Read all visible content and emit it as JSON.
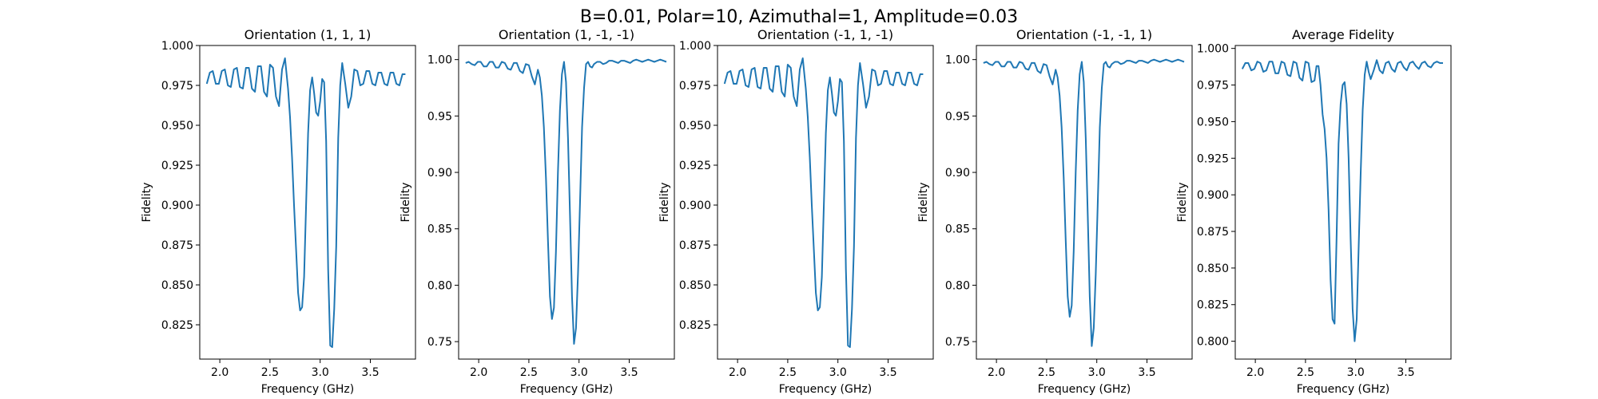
{
  "figure": {
    "suptitle": "B=0.01, Polar=10, Azimuthal=1, Amplitude=0.03"
  },
  "chart_data": [
    {
      "type": "line",
      "title": "Orientation (1, 1, 1)",
      "xlabel": "Frequency (GHz)",
      "ylabel": "Fidelity",
      "xlim": [
        1.8,
        3.95
      ],
      "ylim": [
        0.8035,
        1.0
      ],
      "xticks": [
        "2.0",
        "2.5",
        "3.0",
        "3.5"
      ],
      "yticks": [
        "0.825",
        "0.850",
        "0.875",
        "0.900",
        "0.925",
        "0.950",
        "0.975",
        "1.000"
      ],
      "color": "#1f77b4",
      "x": [
        1.87,
        1.9,
        1.93,
        1.96,
        1.99,
        2.02,
        2.05,
        2.08,
        2.11,
        2.14,
        2.17,
        2.2,
        2.23,
        2.26,
        2.29,
        2.32,
        2.35,
        2.38,
        2.41,
        2.44,
        2.47,
        2.5,
        2.53,
        2.56,
        2.59,
        2.62,
        2.65,
        2.68,
        2.7,
        2.72,
        2.74,
        2.76,
        2.78,
        2.8,
        2.82,
        2.84,
        2.86,
        2.88,
        2.9,
        2.92,
        2.94,
        2.96,
        2.98,
        3.0,
        3.02,
        3.04,
        3.06,
        3.08,
        3.1,
        3.12,
        3.14,
        3.16,
        3.18,
        3.2,
        3.22,
        3.25,
        3.28,
        3.31,
        3.34,
        3.37,
        3.4,
        3.43,
        3.46,
        3.49,
        3.52,
        3.55,
        3.58,
        3.61,
        3.64,
        3.67,
        3.7,
        3.73,
        3.76,
        3.79,
        3.82,
        3.85
      ],
      "y": [
        0.976,
        0.983,
        0.984,
        0.976,
        0.976,
        0.984,
        0.985,
        0.975,
        0.974,
        0.985,
        0.986,
        0.974,
        0.973,
        0.986,
        0.986,
        0.973,
        0.971,
        0.987,
        0.987,
        0.971,
        0.968,
        0.988,
        0.986,
        0.968,
        0.962,
        0.985,
        0.992,
        0.973,
        0.955,
        0.93,
        0.9,
        0.872,
        0.845,
        0.834,
        0.836,
        0.855,
        0.9,
        0.945,
        0.972,
        0.98,
        0.97,
        0.958,
        0.956,
        0.965,
        0.979,
        0.977,
        0.94,
        0.86,
        0.812,
        0.811,
        0.835,
        0.874,
        0.942,
        0.975,
        0.989,
        0.976,
        0.961,
        0.968,
        0.985,
        0.984,
        0.975,
        0.976,
        0.984,
        0.984,
        0.976,
        0.975,
        0.983,
        0.983,
        0.976,
        0.975,
        0.983,
        0.983,
        0.976,
        0.975,
        0.982,
        0.982
      ]
    },
    {
      "type": "line",
      "title": "Orientation (1, -1, -1)",
      "xlabel": "Frequency (GHz)",
      "ylabel": "Fidelity",
      "xlim": [
        1.8,
        3.95
      ],
      "ylim": [
        0.7345,
        1.0125
      ],
      "xticks": [
        "2.0",
        "2.5",
        "3.0",
        "3.5"
      ],
      "yticks": [
        "0.75",
        "0.80",
        "0.85",
        "0.90",
        "0.95",
        "1.00"
      ],
      "color": "#1f77b4",
      "x": [
        1.87,
        1.9,
        1.93,
        1.96,
        1.99,
        2.02,
        2.05,
        2.08,
        2.11,
        2.14,
        2.17,
        2.2,
        2.23,
        2.26,
        2.29,
        2.32,
        2.35,
        2.38,
        2.41,
        2.44,
        2.47,
        2.5,
        2.53,
        2.56,
        2.59,
        2.61,
        2.63,
        2.65,
        2.67,
        2.69,
        2.71,
        2.73,
        2.75,
        2.77,
        2.79,
        2.81,
        2.83,
        2.85,
        2.87,
        2.89,
        2.91,
        2.93,
        2.95,
        2.97,
        2.99,
        3.01,
        3.03,
        3.05,
        3.07,
        3.09,
        3.11,
        3.13,
        3.15,
        3.18,
        3.21,
        3.24,
        3.27,
        3.3,
        3.33,
        3.36,
        3.39,
        3.42,
        3.45,
        3.48,
        3.51,
        3.54,
        3.57,
        3.6,
        3.63,
        3.66,
        3.69,
        3.72,
        3.75,
        3.78,
        3.81,
        3.84,
        3.87
      ],
      "y": [
        0.997,
        0.998,
        0.996,
        0.995,
        0.998,
        0.998,
        0.994,
        0.994,
        0.998,
        0.998,
        0.993,
        0.993,
        0.998,
        0.997,
        0.992,
        0.991,
        0.997,
        0.997,
        0.99,
        0.988,
        0.996,
        0.995,
        0.985,
        0.978,
        0.991,
        0.984,
        0.968,
        0.94,
        0.895,
        0.84,
        0.79,
        0.77,
        0.78,
        0.83,
        0.9,
        0.955,
        0.987,
        0.998,
        0.98,
        0.93,
        0.862,
        0.79,
        0.748,
        0.762,
        0.81,
        0.875,
        0.94,
        0.975,
        0.996,
        0.998,
        0.994,
        0.993,
        0.996,
        0.998,
        0.998,
        0.996,
        0.997,
        0.999,
        0.999,
        0.998,
        0.997,
        0.999,
        0.999,
        0.998,
        0.997,
        0.999,
        1.0,
        0.999,
        0.998,
        0.999,
        1.0,
        0.999,
        0.998,
        0.999,
        1.0,
        0.999,
        0.998
      ]
    },
    {
      "type": "line",
      "title": "Orientation (-1, 1, -1)",
      "xlabel": "Frequency (GHz)",
      "ylabel": "Fidelity",
      "xlim": [
        1.8,
        3.95
      ],
      "ylim": [
        0.8035,
        1.0
      ],
      "xticks": [
        "2.0",
        "2.5",
        "3.0",
        "3.5"
      ],
      "yticks": [
        "0.825",
        "0.850",
        "0.875",
        "0.900",
        "0.925",
        "0.950",
        "0.975",
        "1.000"
      ],
      "color": "#1f77b4",
      "x": [
        1.87,
        1.9,
        1.93,
        1.96,
        1.99,
        2.02,
        2.05,
        2.08,
        2.11,
        2.14,
        2.17,
        2.2,
        2.23,
        2.26,
        2.29,
        2.32,
        2.35,
        2.38,
        2.41,
        2.44,
        2.47,
        2.5,
        2.53,
        2.56,
        2.59,
        2.62,
        2.65,
        2.68,
        2.7,
        2.72,
        2.74,
        2.76,
        2.78,
        2.8,
        2.82,
        2.84,
        2.86,
        2.88,
        2.9,
        2.92,
        2.94,
        2.96,
        2.98,
        3.0,
        3.02,
        3.04,
        3.06,
        3.08,
        3.1,
        3.12,
        3.14,
        3.16,
        3.18,
        3.2,
        3.22,
        3.25,
        3.28,
        3.31,
        3.34,
        3.37,
        3.4,
        3.43,
        3.46,
        3.49,
        3.52,
        3.55,
        3.58,
        3.61,
        3.64,
        3.67,
        3.7,
        3.73,
        3.76,
        3.79,
        3.82,
        3.85
      ],
      "y": [
        0.976,
        0.983,
        0.984,
        0.976,
        0.976,
        0.984,
        0.985,
        0.975,
        0.974,
        0.985,
        0.986,
        0.974,
        0.973,
        0.986,
        0.986,
        0.973,
        0.971,
        0.987,
        0.987,
        0.971,
        0.968,
        0.988,
        0.986,
        0.968,
        0.962,
        0.985,
        0.992,
        0.973,
        0.955,
        0.93,
        0.9,
        0.872,
        0.845,
        0.834,
        0.836,
        0.855,
        0.9,
        0.945,
        0.972,
        0.98,
        0.97,
        0.958,
        0.956,
        0.965,
        0.979,
        0.977,
        0.94,
        0.86,
        0.812,
        0.811,
        0.835,
        0.874,
        0.942,
        0.975,
        0.989,
        0.976,
        0.961,
        0.968,
        0.985,
        0.984,
        0.975,
        0.976,
        0.984,
        0.984,
        0.976,
        0.975,
        0.983,
        0.983,
        0.976,
        0.975,
        0.983,
        0.983,
        0.976,
        0.975,
        0.982,
        0.982
      ]
    },
    {
      "type": "line",
      "title": "Orientation (-1, -1, 1)",
      "xlabel": "Frequency (GHz)",
      "ylabel": "Fidelity",
      "xlim": [
        1.8,
        3.95
      ],
      "ylim": [
        0.7345,
        1.0125
      ],
      "xticks": [
        "2.0",
        "2.5",
        "3.0",
        "3.5"
      ],
      "yticks": [
        "0.75",
        "0.80",
        "0.85",
        "0.90",
        "0.95",
        "1.00"
      ],
      "color": "#1f77b4",
      "x": [
        1.87,
        1.9,
        1.93,
        1.96,
        1.99,
        2.02,
        2.05,
        2.08,
        2.11,
        2.14,
        2.17,
        2.2,
        2.23,
        2.26,
        2.29,
        2.32,
        2.35,
        2.38,
        2.41,
        2.44,
        2.47,
        2.5,
        2.53,
        2.56,
        2.59,
        2.61,
        2.63,
        2.65,
        2.67,
        2.69,
        2.71,
        2.73,
        2.75,
        2.77,
        2.79,
        2.81,
        2.83,
        2.85,
        2.87,
        2.89,
        2.91,
        2.93,
        2.95,
        2.97,
        2.99,
        3.01,
        3.03,
        3.05,
        3.07,
        3.09,
        3.11,
        3.13,
        3.15,
        3.18,
        3.21,
        3.24,
        3.27,
        3.3,
        3.33,
        3.36,
        3.39,
        3.42,
        3.45,
        3.48,
        3.51,
        3.54,
        3.57,
        3.6,
        3.63,
        3.66,
        3.69,
        3.72,
        3.75,
        3.78,
        3.81,
        3.84,
        3.87
      ],
      "y": [
        0.997,
        0.998,
        0.996,
        0.995,
        0.998,
        0.998,
        0.994,
        0.994,
        0.998,
        0.998,
        0.993,
        0.993,
        0.998,
        0.997,
        0.992,
        0.991,
        0.997,
        0.997,
        0.99,
        0.988,
        0.996,
        0.995,
        0.985,
        0.978,
        0.991,
        0.984,
        0.968,
        0.94,
        0.895,
        0.84,
        0.79,
        0.772,
        0.782,
        0.83,
        0.9,
        0.955,
        0.987,
        0.998,
        0.98,
        0.93,
        0.862,
        0.79,
        0.746,
        0.762,
        0.81,
        0.875,
        0.94,
        0.975,
        0.996,
        0.998,
        0.994,
        0.993,
        0.996,
        0.998,
        0.998,
        0.996,
        0.997,
        0.999,
        0.999,
        0.998,
        0.997,
        0.999,
        0.999,
        0.998,
        0.997,
        0.999,
        1.0,
        0.999,
        0.998,
        0.999,
        1.0,
        0.999,
        0.998,
        0.999,
        1.0,
        0.999,
        0.998
      ]
    },
    {
      "type": "line",
      "title": "Average Fidelity",
      "xlabel": "Frequency (GHz)",
      "ylabel": "Fidelity",
      "xlim": [
        1.8,
        3.95
      ],
      "ylim": [
        0.7878,
        1.002
      ],
      "xticks": [
        "2.0",
        "2.5",
        "3.0",
        "3.5"
      ],
      "yticks": [
        "0.800",
        "0.825",
        "0.850",
        "0.875",
        "0.900",
        "0.925",
        "0.950",
        "0.975",
        "1.000"
      ],
      "color": "#1f77b4",
      "x": [
        1.87,
        1.9,
        1.93,
        1.96,
        1.99,
        2.02,
        2.05,
        2.08,
        2.11,
        2.14,
        2.17,
        2.2,
        2.23,
        2.26,
        2.29,
        2.32,
        2.35,
        2.38,
        2.41,
        2.44,
        2.47,
        2.5,
        2.53,
        2.56,
        2.59,
        2.61,
        2.63,
        2.65,
        2.67,
        2.69,
        2.71,
        2.73,
        2.75,
        2.77,
        2.79,
        2.81,
        2.83,
        2.85,
        2.87,
        2.89,
        2.91,
        2.93,
        2.95,
        2.97,
        2.99,
        3.01,
        3.03,
        3.05,
        3.07,
        3.09,
        3.11,
        3.13,
        3.15,
        3.18,
        3.21,
        3.24,
        3.27,
        3.3,
        3.33,
        3.36,
        3.39,
        3.42,
        3.45,
        3.48,
        3.51,
        3.54,
        3.57,
        3.6,
        3.63,
        3.66,
        3.69,
        3.72,
        3.75,
        3.78,
        3.81,
        3.84,
        3.87
      ],
      "y": [
        0.986,
        0.99,
        0.99,
        0.985,
        0.986,
        0.991,
        0.99,
        0.984,
        0.985,
        0.991,
        0.991,
        0.983,
        0.983,
        0.991,
        0.99,
        0.982,
        0.981,
        0.991,
        0.99,
        0.98,
        0.978,
        0.991,
        0.99,
        0.977,
        0.978,
        0.988,
        0.988,
        0.975,
        0.955,
        0.945,
        0.925,
        0.89,
        0.842,
        0.815,
        0.812,
        0.87,
        0.935,
        0.962,
        0.975,
        0.977,
        0.962,
        0.925,
        0.87,
        0.822,
        0.8,
        0.815,
        0.865,
        0.915,
        0.958,
        0.982,
        0.991,
        0.984,
        0.979,
        0.985,
        0.992,
        0.985,
        0.983,
        0.99,
        0.991,
        0.986,
        0.984,
        0.99,
        0.991,
        0.987,
        0.985,
        0.99,
        0.991,
        0.988,
        0.986,
        0.99,
        0.991,
        0.988,
        0.987,
        0.99,
        0.991,
        0.99,
        0.99
      ]
    }
  ]
}
